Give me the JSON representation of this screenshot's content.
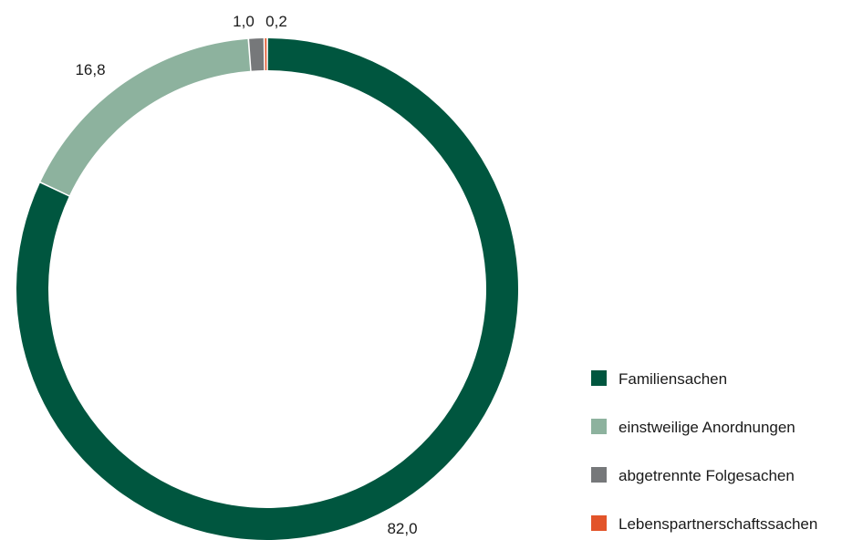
{
  "chart_data": {
    "type": "pie",
    "variant": "donut",
    "decimal_separator": ",",
    "start": "top",
    "direction": "clockwise",
    "legend_position": "right-bottom",
    "series": [
      {
        "name": "Familiensachen",
        "value": 82.0,
        "label": "82,0",
        "color": "#00563f"
      },
      {
        "name": "einstweilige Anordnungen",
        "value": 16.8,
        "label": "16,8",
        "color": "#8db29e"
      },
      {
        "name": "abgetrennte Folgesachen",
        "value": 1.0,
        "label": "1,0",
        "color": "#76787a"
      },
      {
        "name": "Lebenspartnerschaftssachen",
        "value": 0.2,
        "label": "0,2",
        "color": "#e2542a"
      }
    ]
  }
}
